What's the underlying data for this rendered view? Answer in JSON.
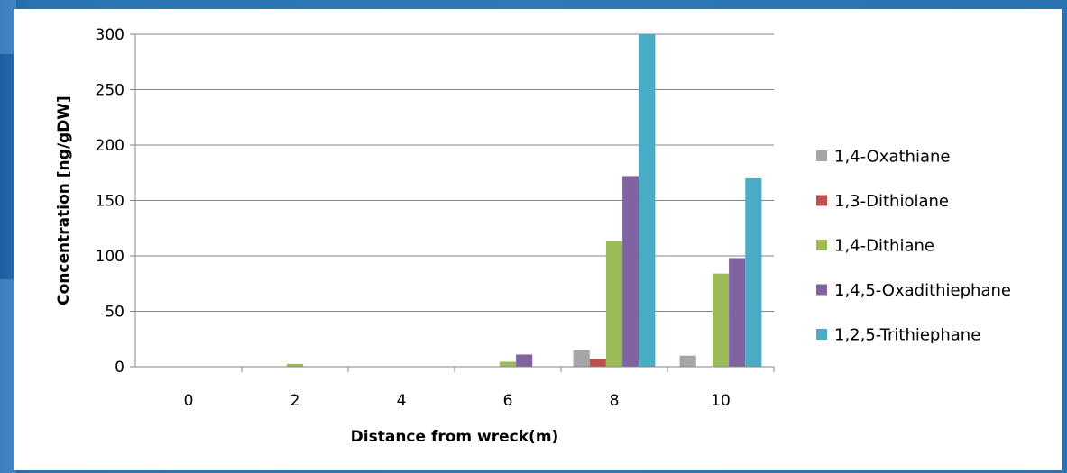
{
  "chart_data": {
    "type": "bar",
    "title": "",
    "xlabel": "Distance from wreck(m)",
    "ylabel": "Concentration [ng/gDW]",
    "categories": [
      "0",
      "2",
      "4",
      "6",
      "8",
      "10"
    ],
    "ylim": [
      0,
      300
    ],
    "yticks": [
      0,
      50,
      100,
      150,
      200,
      250,
      300
    ],
    "grid": true,
    "legend_position": "right",
    "series": [
      {
        "name": "1,4-Oxathiane",
        "color": "#a5a5a5",
        "values": [
          0,
          0,
          0,
          0,
          15,
          10
        ]
      },
      {
        "name": "1,3-Dithiolane",
        "color": "#c0504d",
        "values": [
          0,
          0,
          0,
          0,
          7,
          0
        ]
      },
      {
        "name": "1,4-Dithiane",
        "color": "#9bbb59",
        "values": [
          0,
          2.5,
          0,
          4.5,
          113,
          84
        ]
      },
      {
        "name": "1,4,5-Oxadithiephane",
        "color": "#8064a2",
        "values": [
          0,
          0,
          0,
          11,
          172,
          98
        ]
      },
      {
        "name": "1,2,5-Trithiephane",
        "color": "#4bacc6",
        "values": [
          0,
          0,
          0,
          0,
          300,
          170
        ]
      }
    ]
  }
}
